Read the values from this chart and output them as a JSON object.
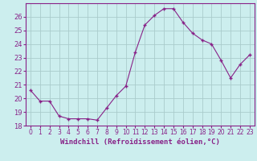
{
  "hours": [
    0,
    1,
    2,
    3,
    4,
    5,
    6,
    7,
    8,
    9,
    10,
    11,
    12,
    13,
    14,
    15,
    16,
    17,
    18,
    19,
    20,
    21,
    22,
    23
  ],
  "values": [
    20.6,
    19.8,
    19.8,
    18.7,
    18.5,
    18.5,
    18.5,
    18.4,
    19.3,
    20.2,
    20.9,
    23.4,
    25.4,
    26.1,
    26.6,
    26.6,
    25.6,
    24.8,
    24.3,
    24.0,
    22.8,
    21.5,
    22.5,
    23.2
  ],
  "line_color": "#882288",
  "marker": "+",
  "bg_color": "#cceeee",
  "grid_color": "#aacccc",
  "xlabel": "Windchill (Refroidissement éolien,°C)",
  "ylim": [
    18,
    27
  ],
  "yticks": [
    18,
    19,
    20,
    21,
    22,
    23,
    24,
    25,
    26
  ],
  "xlabel_color": "#882288",
  "tick_color": "#882288",
  "axis_line_color": "#882288",
  "tick_fontsize": 6,
  "xlabel_fontsize": 6.5
}
